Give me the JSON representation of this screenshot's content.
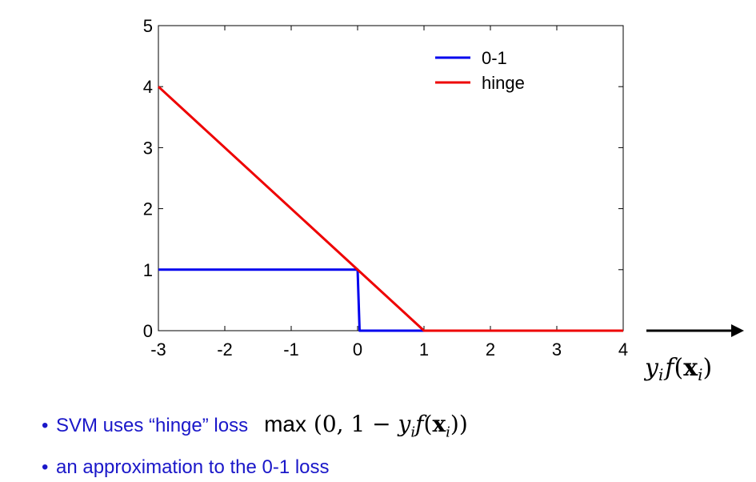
{
  "chart_data": {
    "type": "line",
    "title": "",
    "xlabel": "y_i f(x_i)",
    "ylabel": "",
    "xlim": [
      -3,
      4
    ],
    "ylim": [
      0,
      5
    ],
    "xticks": [
      -3,
      -2,
      -1,
      0,
      1,
      2,
      3,
      4
    ],
    "yticks": [
      0,
      1,
      2,
      3,
      4,
      5
    ],
    "grid": false,
    "legend_position": "top-right",
    "series": [
      {
        "name": "0-1",
        "color": "#0000ee",
        "x": [
          -3,
          0,
          0.03,
          4
        ],
        "y": [
          1,
          1,
          0,
          0
        ]
      },
      {
        "name": "hinge",
        "color": "#ee0000",
        "x": [
          -3,
          1,
          4
        ],
        "y": [
          4,
          0,
          0
        ]
      }
    ]
  },
  "axis_annotation": {
    "y": "y",
    "i1": "i",
    "f": "f",
    "open": "(",
    "x": "x",
    "i2": "i",
    "close": ")"
  },
  "bullets": [
    {
      "text": "SVM uses “hinge” loss",
      "formula": {
        "fn": "max",
        "rest_open": "(0, 1 − ",
        "y": "y",
        "i": "i",
        "f": "f",
        "paren_open": "(",
        "x": "x",
        "i2": "i",
        "close": "))"
      }
    },
    {
      "text": "an approximation to the 0-1 loss"
    }
  ]
}
